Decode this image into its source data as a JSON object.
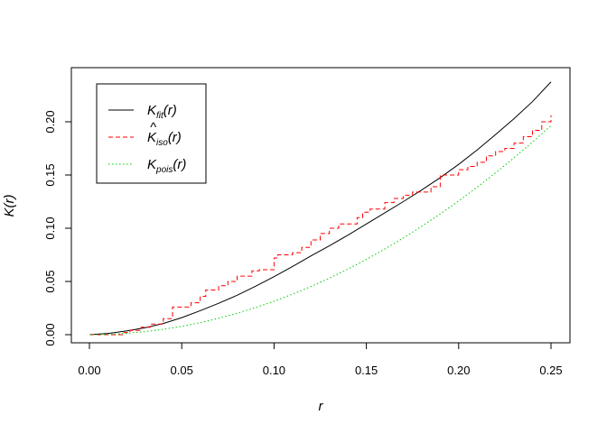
{
  "chart_data": {
    "type": "line",
    "title": "",
    "xlabel": "r",
    "ylabel": "K(r)",
    "xlim": [
      0,
      0.25
    ],
    "ylim": [
      0,
      0.24
    ],
    "xticks": [
      "0.00",
      "0.05",
      "0.10",
      "0.15",
      "0.20",
      "0.25"
    ],
    "yticks": [
      "0.00",
      "0.05",
      "0.10",
      "0.15",
      "0.20"
    ],
    "grid": false,
    "legend_position": "top-left",
    "series": [
      {
        "name": "K_fit(r)",
        "legend_main": "K",
        "legend_sub": "fit",
        "legend_arg": "(r)",
        "style": "solid",
        "color": "#000000",
        "x": [
          0,
          0.01,
          0.02,
          0.03,
          0.04,
          0.05,
          0.06,
          0.07,
          0.08,
          0.09,
          0.1,
          0.11,
          0.12,
          0.13,
          0.14,
          0.15,
          0.16,
          0.17,
          0.18,
          0.19,
          0.2,
          0.21,
          0.22,
          0.23,
          0.24,
          0.25
        ],
        "y": [
          0,
          0.0012,
          0.0035,
          0.0065,
          0.0105,
          0.016,
          0.0225,
          0.0295,
          0.037,
          0.0455,
          0.0545,
          0.064,
          0.074,
          0.0835,
          0.0935,
          0.104,
          0.1145,
          0.125,
          0.136,
          0.1475,
          0.16,
          0.1735,
          0.188,
          0.203,
          0.219,
          0.2375
        ]
      },
      {
        "name": "K^_iso(r)",
        "legend_main": "K",
        "legend_sub": "iso",
        "legend_arg": "(r)",
        "legend_hat": "^",
        "style": "dashed",
        "color": "#ff0000",
        "x": [
          0,
          0.018,
          0.022,
          0.028,
          0.033,
          0.04,
          0.045,
          0.055,
          0.06,
          0.063,
          0.07,
          0.075,
          0.08,
          0.088,
          0.092,
          0.1,
          0.102,
          0.11,
          0.115,
          0.12,
          0.125,
          0.13,
          0.135,
          0.145,
          0.148,
          0.152,
          0.16,
          0.165,
          0.17,
          0.175,
          0.18,
          0.185,
          0.19,
          0.2,
          0.205,
          0.21,
          0.215,
          0.22,
          0.225,
          0.23,
          0.235,
          0.24,
          0.245,
          0.25
        ],
        "y": [
          0,
          0.002,
          0.004,
          0.007,
          0.01,
          0.015,
          0.026,
          0.03,
          0.036,
          0.042,
          0.046,
          0.05,
          0.055,
          0.06,
          0.061,
          0.072,
          0.075,
          0.077,
          0.082,
          0.089,
          0.095,
          0.1,
          0.104,
          0.11,
          0.115,
          0.118,
          0.124,
          0.128,
          0.131,
          0.134,
          0.134,
          0.139,
          0.15,
          0.155,
          0.158,
          0.162,
          0.168,
          0.172,
          0.175,
          0.18,
          0.186,
          0.192,
          0.2,
          0.206
        ]
      },
      {
        "name": "K_pois(r)",
        "legend_main": "K",
        "legend_sub": "pois",
        "legend_arg": "(r)",
        "style": "dotted",
        "color": "#00cd00",
        "x": [
          0,
          0.01,
          0.02,
          0.03,
          0.04,
          0.05,
          0.06,
          0.07,
          0.08,
          0.09,
          0.1,
          0.11,
          0.12,
          0.13,
          0.14,
          0.15,
          0.16,
          0.17,
          0.18,
          0.19,
          0.2,
          0.21,
          0.22,
          0.23,
          0.24,
          0.25
        ],
        "y": [
          0,
          0.000314,
          0.001257,
          0.002827,
          0.005027,
          0.007854,
          0.01131,
          0.015394,
          0.020106,
          0.025447,
          0.031416,
          0.038013,
          0.045239,
          0.053093,
          0.061575,
          0.070686,
          0.080425,
          0.090792,
          0.101788,
          0.113411,
          0.125664,
          0.138544,
          0.152053,
          0.16619,
          0.180956,
          0.19635
        ]
      }
    ]
  }
}
